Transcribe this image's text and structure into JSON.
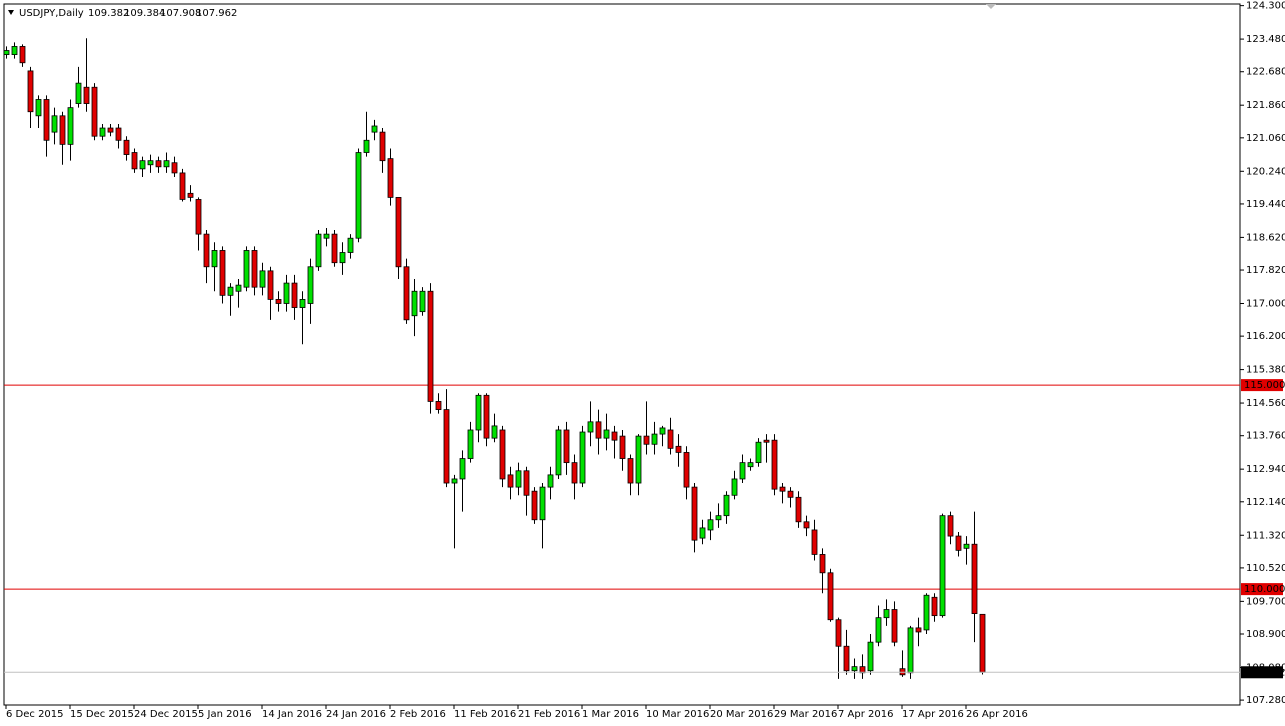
{
  "chart_data": {
    "type": "candlestick",
    "title": "USDJPY,Daily",
    "up_color": "#00e000",
    "down_color": "#e00000",
    "ylim": [
      107.16,
      124.34
    ],
    "yticks": [
      {
        "value": 124.3,
        "label": "124.300"
      },
      {
        "value": 123.48,
        "label": "123.480"
      },
      {
        "value": 122.68,
        "label": "122.680"
      },
      {
        "value": 121.86,
        "label": "121.860"
      },
      {
        "value": 121.06,
        "label": "121.060"
      },
      {
        "value": 120.24,
        "label": "120.240"
      },
      {
        "value": 119.44,
        "label": "119.440"
      },
      {
        "value": 118.62,
        "label": "118.620"
      },
      {
        "value": 117.82,
        "label": "117.820"
      },
      {
        "value": 117,
        "label": "117.000"
      },
      {
        "value": 116.2,
        "label": "116.200"
      },
      {
        "value": 115.38,
        "label": "115.380"
      },
      {
        "value": 114.56,
        "label": "114.560"
      },
      {
        "value": 113.76,
        "label": "113.760"
      },
      {
        "value": 112.94,
        "label": "112.940"
      },
      {
        "value": 112.14,
        "label": "112.140"
      },
      {
        "value": 111.32,
        "label": "111.320"
      },
      {
        "value": 110.52,
        "label": "110.520"
      },
      {
        "value": 109.7,
        "label": "109.700"
      },
      {
        "value": 108.9,
        "label": "108.900"
      },
      {
        "value": 108.08,
        "label": "108.080"
      },
      {
        "value": 107.28,
        "label": "107.280"
      }
    ],
    "hlines": [
      {
        "value": 115,
        "label": "115.000",
        "color": "#e00000"
      },
      {
        "value": 110,
        "label": "110.000",
        "color": "#e00000"
      }
    ],
    "categories": [
      "6 Dec 2015",
      null,
      null,
      null,
      null,
      null,
      null,
      null,
      "15 Dec 2015",
      null,
      null,
      null,
      null,
      null,
      null,
      null,
      "24 Dec 2015",
      null,
      null,
      null,
      null,
      null,
      null,
      null,
      "5 Jan 2016",
      null,
      null,
      null,
      null,
      null,
      null,
      null,
      "14 Jan 2016",
      null,
      null,
      null,
      null,
      null,
      null,
      null,
      "24 Jan 2016",
      null,
      null,
      null,
      null,
      null,
      null,
      null,
      "2 Feb 2016",
      null,
      null,
      null,
      null,
      null,
      null,
      null,
      "11 Feb 2016",
      null,
      null,
      null,
      null,
      null,
      null,
      null,
      "21 Feb 2016",
      null,
      null,
      null,
      null,
      null,
      null,
      null,
      "1 Mar 2016",
      null,
      null,
      null,
      null,
      null,
      null,
      null,
      "10 Mar 2016",
      null,
      null,
      null,
      null,
      null,
      null,
      null,
      "20 Mar 2016",
      null,
      null,
      null,
      null,
      null,
      null,
      null,
      "29 Mar 2016",
      null,
      null,
      null,
      null,
      null,
      null,
      null,
      "7 Apr 2016",
      null,
      null,
      null,
      null,
      null,
      null,
      null,
      "17 Apr 2016",
      null,
      null,
      null,
      null,
      null,
      null,
      null,
      "26 Apr 2016",
      null,
      null
    ],
    "open": [
      123.1,
      123.1,
      123.3,
      122.7,
      121.6,
      122.0,
      121.2,
      121.6,
      120.9,
      121.9,
      122.3,
      122.3,
      121.1,
      121.3,
      121.3,
      121.0,
      120.7,
      120.3,
      120.4,
      120.5,
      120.35,
      120.45,
      120.2,
      119.7,
      119.55,
      118.7,
      117.9,
      118.3,
      117.2,
      117.3,
      117.4,
      118.3,
      117.4,
      117.8,
      117.1,
      117.0,
      117.5,
      116.9,
      117.0,
      117.9,
      118.6,
      118.7,
      118.0,
      118.25,
      118.6,
      120.7,
      121.2,
      121.2,
      120.55,
      119.6,
      117.9,
      116.7,
      116.8,
      117.3,
      114.6,
      114.4,
      112.6,
      112.7,
      113.2,
      113.9,
      114.75,
      113.7,
      113.9,
      112.8,
      112.5,
      112.9,
      112.4,
      111.7,
      112.5,
      112.8,
      113.9,
      113.1,
      112.6,
      113.85,
      114.1,
      113.7,
      113.85,
      113.75,
      113.2,
      112.6,
      113.75,
      113.55,
      113.8,
      113.9,
      113.5,
      113.35,
      112.5,
      111.25,
      111.45,
      111.7,
      111.8,
      112.3,
      112.7,
      113.0,
      113.1,
      113.65,
      113.65,
      112.5,
      112.4,
      112.25,
      111.65,
      111.45,
      110.85,
      110.4,
      109.25,
      108.6,
      108.0,
      108.1,
      108.0,
      108.7,
      109.3,
      109.5,
      108.05,
      107.95,
      109.05,
      109.0,
      109.8,
      109.35,
      111.8,
      111.3,
      111.0,
      111.1,
      109.382
    ],
    "high": [
      123.3,
      123.4,
      123.35,
      122.8,
      122.1,
      122.1,
      121.8,
      121.7,
      122.0,
      122.8,
      123.5,
      122.4,
      121.4,
      121.4,
      121.4,
      121.1,
      120.8,
      120.6,
      120.65,
      120.6,
      120.7,
      120.6,
      120.3,
      119.9,
      119.6,
      118.8,
      118.5,
      118.4,
      117.5,
      117.6,
      118.4,
      118.4,
      118.0,
      117.9,
      117.3,
      117.7,
      117.7,
      117.3,
      118.1,
      118.8,
      118.85,
      118.8,
      118.5,
      118.7,
      120.8,
      121.7,
      121.5,
      121.3,
      120.8,
      119.6,
      118.1,
      117.6,
      117.4,
      117.5,
      114.8,
      114.9,
      112.8,
      113.4,
      114.1,
      114.8,
      114.8,
      114.3,
      114.0,
      113.0,
      113.1,
      113.0,
      112.5,
      112.6,
      113.0,
      114.0,
      114.1,
      113.3,
      114.0,
      114.6,
      114.4,
      114.3,
      114.0,
      113.9,
      113.3,
      113.8,
      114.6,
      114.1,
      114.0,
      114.2,
      113.8,
      113.5,
      112.6,
      111.7,
      111.9,
      112.1,
      112.4,
      112.9,
      113.3,
      113.2,
      113.7,
      113.8,
      113.8,
      112.6,
      112.5,
      112.4,
      111.8,
      111.7,
      111.0,
      110.5,
      109.3,
      109.0,
      108.3,
      108.4,
      108.9,
      109.6,
      109.75,
      109.7,
      108.5,
      109.1,
      109.3,
      109.9,
      109.9,
      111.85,
      111.9,
      111.4,
      111.3,
      111.9,
      109.384
    ],
    "low": [
      123.0,
      123.0,
      122.8,
      121.3,
      121.3,
      120.6,
      120.9,
      120.4,
      120.5,
      121.8,
      121.7,
      121.0,
      121.0,
      121.1,
      120.8,
      120.5,
      120.2,
      120.1,
      120.2,
      120.2,
      120.2,
      120.1,
      119.5,
      119.5,
      118.3,
      117.5,
      117.3,
      117.0,
      116.7,
      116.9,
      117.3,
      117.2,
      117.2,
      116.6,
      116.8,
      116.8,
      116.6,
      116.0,
      116.5,
      117.8,
      118.4,
      117.9,
      117.7,
      118.1,
      118.5,
      120.6,
      121.0,
      120.2,
      119.4,
      117.6,
      116.5,
      116.2,
      116.7,
      114.3,
      114.3,
      112.5,
      111.0,
      111.9,
      113.1,
      113.6,
      113.5,
      113.6,
      112.5,
      112.2,
      112.3,
      111.8,
      111.6,
      111.0,
      112.2,
      112.7,
      112.8,
      112.2,
      112.5,
      113.5,
      113.3,
      113.4,
      113.2,
      112.9,
      112.3,
      112.3,
      113.3,
      113.3,
      113.5,
      113.3,
      113.0,
      112.2,
      110.9,
      111.1,
      111.2,
      111.5,
      111.6,
      112.2,
      112.6,
      112.9,
      113.0,
      113.1,
      112.3,
      112.1,
      112.0,
      111.5,
      111.3,
      110.7,
      109.9,
      109.2,
      107.8,
      107.9,
      107.8,
      107.8,
      107.9,
      108.6,
      109.1,
      108.6,
      107.85,
      107.8,
      108.6,
      108.9,
      109.2,
      109.3,
      111.1,
      110.8,
      110.6,
      108.7,
      107.908
    ],
    "close": [
      123.2,
      123.3,
      122.9,
      121.7,
      122.0,
      121.0,
      121.6,
      120.9,
      121.8,
      122.4,
      121.9,
      121.1,
      121.3,
      121.2,
      121.0,
      120.65,
      120.3,
      120.5,
      120.5,
      120.35,
      120.5,
      120.2,
      119.55,
      119.6,
      118.7,
      117.9,
      118.3,
      117.2,
      117.4,
      117.45,
      118.3,
      117.4,
      117.8,
      117.1,
      117.0,
      117.5,
      116.9,
      117.1,
      117.9,
      118.7,
      118.7,
      118.0,
      118.25,
      118.6,
      120.7,
      121.0,
      121.35,
      120.5,
      119.6,
      117.9,
      116.6,
      117.3,
      117.3,
      114.6,
      114.4,
      112.6,
      112.7,
      113.2,
      113.9,
      114.75,
      113.7,
      114.0,
      112.7,
      112.5,
      112.9,
      112.3,
      111.7,
      112.5,
      112.8,
      113.9,
      113.1,
      112.6,
      113.85,
      114.1,
      113.7,
      113.9,
      113.65,
      113.2,
      112.6,
      113.75,
      113.55,
      113.8,
      113.95,
      113.45,
      113.35,
      112.5,
      111.2,
      111.5,
      111.7,
      111.8,
      112.3,
      112.7,
      113.1,
      113.1,
      113.6,
      113.6,
      112.45,
      112.4,
      112.25,
      111.65,
      111.5,
      110.85,
      110.4,
      109.25,
      108.6,
      108.0,
      108.1,
      107.95,
      108.7,
      109.3,
      109.5,
      108.7,
      107.9,
      109.05,
      108.95,
      109.85,
      109.35,
      111.8,
      111.3,
      110.95,
      111.1,
      109.4,
      107.962
    ]
  }
}
